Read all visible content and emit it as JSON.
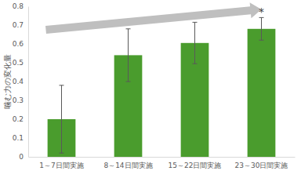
{
  "chart_data": {
    "type": "bar",
    "y_label": "噛む力の変化量",
    "categories": [
      "1～7日間実施",
      "8～14日間実施",
      "15～22日間実施",
      "23～30日間実施"
    ],
    "values": [
      0.2,
      0.54,
      0.605,
      0.68
    ],
    "errors": [
      0.18,
      0.14,
      0.11,
      0.06
    ],
    "color": "#4a9c2d",
    "ylim": [
      0,
      0.8
    ],
    "yticks": [
      0,
      0.1,
      0.2,
      0.3,
      0.4,
      0.5,
      0.6,
      0.7,
      0.8
    ],
    "grid": false,
    "annotations": [
      {
        "text": "*"
      }
    ]
  }
}
